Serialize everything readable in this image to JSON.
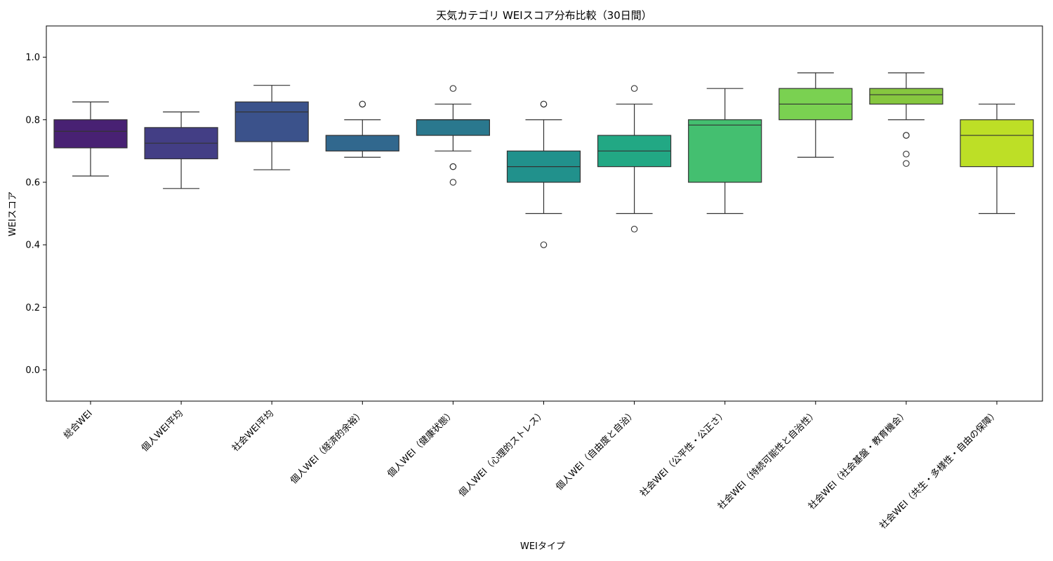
{
  "chart_data": {
    "type": "box",
    "title": "天気カテゴリ WEIスコア分布比較（30日間）",
    "xlabel": "WEIタイプ",
    "ylabel": "WEIスコア",
    "ylim": [
      -0.1,
      1.1
    ],
    "yticks": [
      0.0,
      0.2,
      0.4,
      0.6,
      0.8,
      1.0
    ],
    "ytick_labels": [
      "0.0",
      "0.2",
      "0.4",
      "0.6",
      "0.8",
      "1.0"
    ],
    "grid": false,
    "legend": "none",
    "categories": [
      "総合WEI",
      "個人WEI平均",
      "社会WEI平均",
      "個人WEI（経済的余裕）",
      "個人WEI（健康状態）",
      "個人WEI（心理的ストレス）",
      "個人WEI（自由度と自治）",
      "社会WEI（公平性・公正さ）",
      "社会WEI（持続可能性と自治性）",
      "社会WEI（社会基盤・教育機会）",
      "社会WEI（共生・多様性・自由の保障）"
    ],
    "boxes": [
      {
        "whisker_low": 0.62,
        "q1": 0.71,
        "median": 0.763,
        "q3": 0.8,
        "whisker_high": 0.857,
        "outliers": [],
        "color": "#482173"
      },
      {
        "whisker_low": 0.58,
        "q1": 0.675,
        "median": 0.725,
        "q3": 0.775,
        "whisker_high": 0.825,
        "outliers": [],
        "color": "#433e85"
      },
      {
        "whisker_low": 0.64,
        "q1": 0.73,
        "median": 0.825,
        "q3": 0.857,
        "whisker_high": 0.91,
        "outliers": [],
        "color": "#3b528b"
      },
      {
        "whisker_low": 0.68,
        "q1": 0.7,
        "median": 0.75,
        "q3": 0.75,
        "whisker_high": 0.8,
        "outliers": [
          0.85,
          0.85
        ],
        "color": "#31688e"
      },
      {
        "whisker_low": 0.7,
        "q1": 0.75,
        "median": 0.8,
        "q3": 0.8,
        "whisker_high": 0.85,
        "outliers": [
          0.9,
          0.65,
          0.65,
          0.6
        ],
        "color": "#2a788e"
      },
      {
        "whisker_low": 0.5,
        "q1": 0.6,
        "median": 0.65,
        "q3": 0.7,
        "whisker_high": 0.8,
        "outliers": [
          0.85,
          0.85,
          0.4
        ],
        "color": "#21918c"
      },
      {
        "whisker_low": 0.5,
        "q1": 0.65,
        "median": 0.7,
        "q3": 0.75,
        "whisker_high": 0.85,
        "outliers": [
          0.9,
          0.45
        ],
        "color": "#22a884"
      },
      {
        "whisker_low": 0.5,
        "q1": 0.6,
        "median": 0.783,
        "q3": 0.8,
        "whisker_high": 0.9,
        "outliers": [],
        "color": "#44bf70"
      },
      {
        "whisker_low": 0.68,
        "q1": 0.8,
        "median": 0.85,
        "q3": 0.9,
        "whisker_high": 0.95,
        "outliers": [],
        "color": "#7ad151"
      },
      {
        "whisker_low": 0.8,
        "q1": 0.85,
        "median": 0.88,
        "q3": 0.9,
        "whisker_high": 0.95,
        "outliers": [
          0.75,
          0.75,
          0.69,
          0.66
        ],
        "color": "#86c73f"
      },
      {
        "whisker_low": 0.5,
        "q1": 0.65,
        "median": 0.75,
        "q3": 0.8,
        "whisker_high": 0.85,
        "outliers": [],
        "color": "#bddf26"
      }
    ]
  }
}
